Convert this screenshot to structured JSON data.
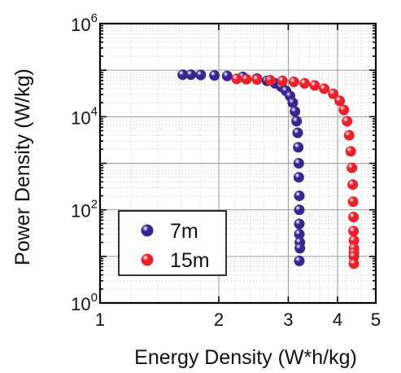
{
  "chart_data": {
    "type": "scatter",
    "xlabel": "Energy Density (W*h/kg)",
    "ylabel": "Power Density (W/kg)",
    "x_scale": "log",
    "y_scale": "log",
    "xlim": [
      1,
      5
    ],
    "ylim": [
      1,
      1000000
    ],
    "x_ticks": [
      1,
      2,
      3,
      4,
      5
    ],
    "x_tick_labels": [
      "1",
      "2",
      "3",
      "4",
      "5"
    ],
    "y_ticks": [
      1,
      100,
      10000,
      1000000
    ],
    "y_tick_labels": [
      {
        "base": "10",
        "exp": "0"
      },
      {
        "base": "10",
        "exp": "2"
      },
      {
        "base": "10",
        "exp": "4"
      },
      {
        "base": "10",
        "exp": "6"
      }
    ],
    "grid": true,
    "legend_position": "bottom-left",
    "series": [
      {
        "name": "7m",
        "color": "#3a2590",
        "x": [
          1.62,
          1.7,
          1.8,
          1.95,
          2.1,
          2.3,
          2.5,
          2.65,
          2.78,
          2.88,
          2.96,
          3.03,
          3.08,
          3.12,
          3.15,
          3.17,
          3.18,
          3.19,
          3.19,
          3.2,
          3.2,
          3.2,
          3.2,
          3.21,
          3.21,
          3.2
        ],
        "y": [
          80000,
          80000,
          79000,
          77000,
          75000,
          72000,
          66000,
          59000,
          52000,
          44000,
          36000,
          28000,
          20000,
          13000,
          8000,
          4500,
          2200,
          1000,
          500,
          200,
          100,
          50,
          30,
          20,
          15,
          8
        ]
      },
      {
        "name": "15m",
        "color": "#e8212b",
        "x": [
          2.22,
          2.35,
          2.5,
          2.7,
          2.9,
          3.1,
          3.3,
          3.5,
          3.7,
          3.9,
          4.05,
          4.15,
          4.23,
          4.28,
          4.32,
          4.35,
          4.37,
          4.38,
          4.39,
          4.39,
          4.4,
          4.4,
          4.4,
          4.4,
          4.4
        ],
        "y": [
          65000,
          64000,
          63000,
          61000,
          59000,
          56000,
          52000,
          47000,
          40000,
          31000,
          22000,
          14000,
          8000,
          4000,
          1800,
          800,
          350,
          150,
          70,
          35,
          22,
          15,
          12,
          10,
          7
        ]
      }
    ]
  }
}
